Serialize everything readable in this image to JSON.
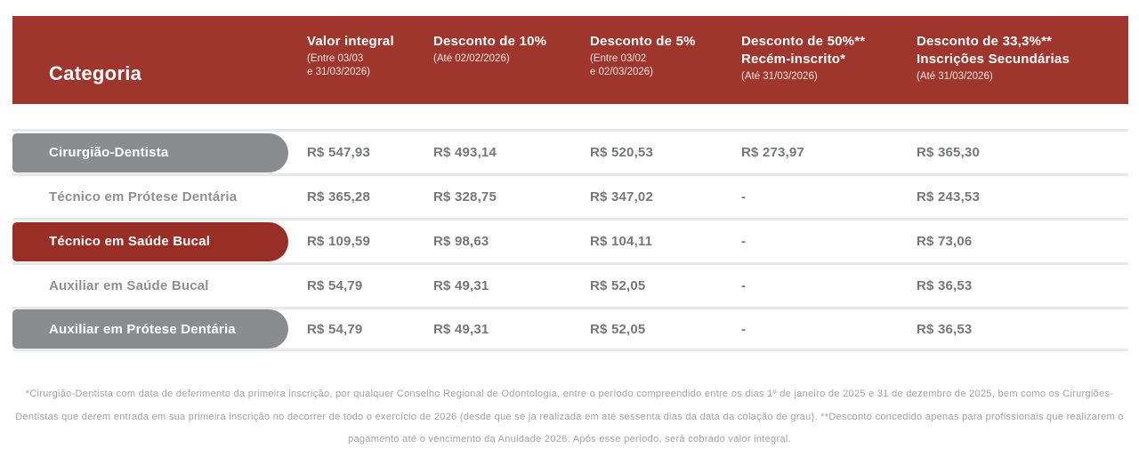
{
  "colors": {
    "header_bg": "#9E362E",
    "red_pill": "#992E26",
    "gray_pill": "#8A8D8F",
    "divider": "#E8E8E8",
    "value_text": "#74787B",
    "plain_label_text": "#8C9094",
    "footnote_text": "#9FA3A6"
  },
  "table": {
    "header": {
      "category_label": "Categoria",
      "columns": [
        {
          "title": "Valor integral",
          "subtitle": "(Entre 03/03\ne 31/03/2026)"
        },
        {
          "title": "Desconto de 10%",
          "subtitle": "(Até 02/02/2026)"
        },
        {
          "title": "Desconto de 5%",
          "subtitle": "(Entre 03/02\ne 02/03/2026)"
        },
        {
          "title": "Desconto de 50%**\nRecém-inscrito*",
          "subtitle": "(Até 31/03/2026)"
        },
        {
          "title": "Desconto de 33,3%**\nInscrições Secundárias",
          "subtitle": "(Até 31/03/2026)"
        }
      ]
    },
    "rows": [
      {
        "category": "Cirurgião-Dentista",
        "pill": "gray",
        "values": [
          "R$ 547,93",
          "R$ 493,14",
          "R$ 520,53",
          "R$ 273,97",
          "R$ 365,30"
        ]
      },
      {
        "category": "Técnico em Prótese Dentária",
        "pill": "none",
        "values": [
          "R$ 365,28",
          "R$ 328,75",
          "R$ 347,02",
          "-",
          "R$ 243,53"
        ]
      },
      {
        "category": "Técnico em Saúde Bucal",
        "pill": "red",
        "values": [
          "R$ 109,59",
          "R$ 98,63",
          "R$ 104,11",
          "-",
          "R$ 73,06"
        ]
      },
      {
        "category": "Auxiliar em Saúde Bucal",
        "pill": "none",
        "values": [
          "R$ 54,79",
          "R$ 49,31",
          "R$ 52,05",
          "-",
          "R$ 36,53"
        ]
      },
      {
        "category": "Auxiliar em Prótese Dentária",
        "pill": "gray",
        "values": [
          "R$ 54,79",
          "R$ 49,31",
          "R$ 52,05",
          "-",
          "R$ 36,53"
        ]
      }
    ]
  },
  "footnote": "*Cirurgião-Dentista com data de deferimento da primeira inscrição, por qualquer Conselho Regional de Odontologia, entre o período compreendido entre os dias 1º de janeiro de 2025 e 31 de dezembro de 2025, bem como os Cirurgiões-Dentistas que derem entrada em sua primeira inscrição no decorrer de todo o exercício de 2026 (desde que se ja realizada em até sessenta dias da data da colação de grau). **Desconto concedido apenas para profissionais que realizarem o pagamento até o vencimento da Anuidade 2026. Após esse período, será cobrado valor integral."
}
